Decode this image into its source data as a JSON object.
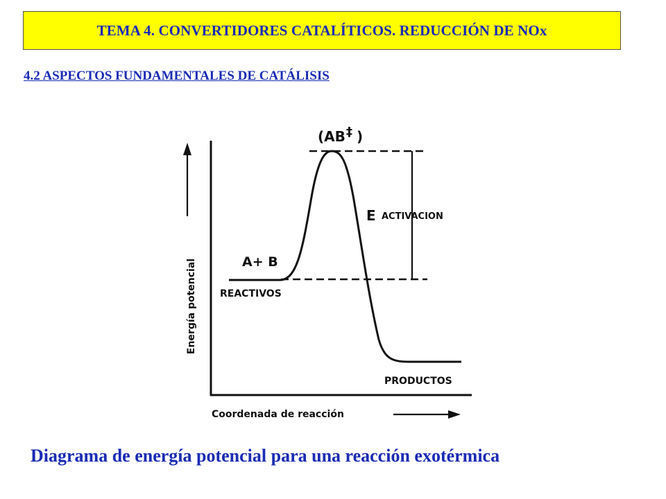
{
  "header": {
    "title": "TEMA 4. CONVERTIDORES CATALÍTICOS. REDUCCIÓN DE NOx",
    "subtitle": "4.2 ASPECTOS FUNDAMENTALES DE CATÁLISIS"
  },
  "diagram": {
    "y_axis_label": "Energía potencial",
    "x_axis_label": "Coordenada de reacción",
    "transition_state": "(AB",
    "transition_mark": "‡",
    "transition_close": ")",
    "activation_E": "E",
    "activation_word": "ACTIVACION",
    "reactants_species": "A+ B",
    "reactants_label": "REACTIVOS",
    "products_label": "PRODUCTOS"
  },
  "caption": "Diagrama de energía potencial para una reacción exotérmica",
  "colors": {
    "title_bg": "#ffff00",
    "heading_text": "#1a2bb5"
  }
}
